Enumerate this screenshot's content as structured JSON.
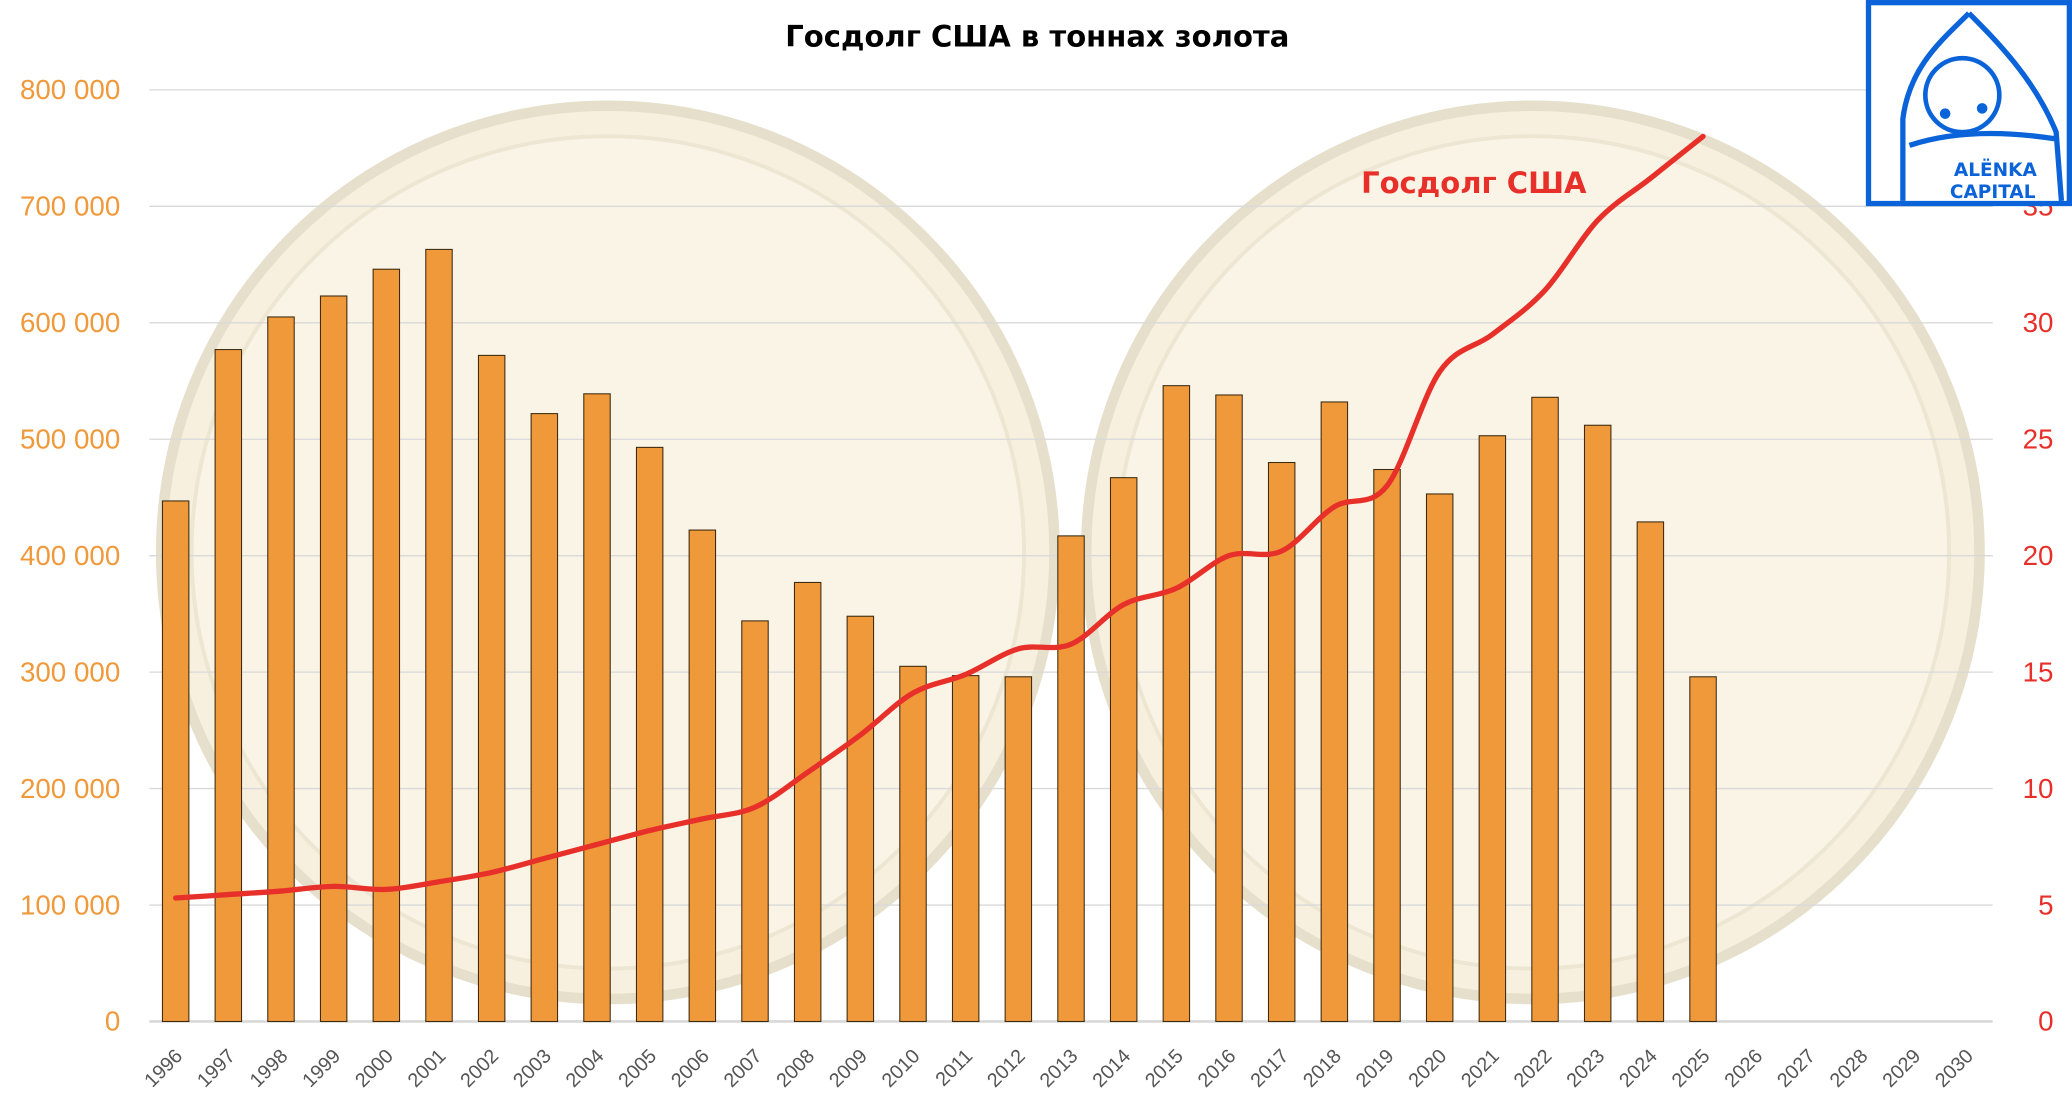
{
  "chart_data": {
    "type": "bar+line",
    "title": "Госдолг США в тоннах золота",
    "categories": [
      "1996",
      "1997",
      "1998",
      "1999",
      "2000",
      "2001",
      "2002",
      "2003",
      "2004",
      "2005",
      "2006",
      "2007",
      "2008",
      "2009",
      "2010",
      "2011",
      "2012",
      "2013",
      "2014",
      "2015",
      "2016",
      "2017",
      "2018",
      "2019",
      "2020",
      "2021",
      "2022",
      "2023",
      "2024",
      "2025",
      "2026",
      "2027",
      "2028",
      "2029",
      "2030"
    ],
    "series": [
      {
        "type": "bar",
        "axis": "left",
        "color": "#f0993a",
        "values": [
          447000,
          577000,
          605000,
          623000,
          646000,
          663000,
          572000,
          522000,
          539000,
          493000,
          422000,
          344000,
          377000,
          348000,
          305000,
          297000,
          296000,
          417000,
          467000,
          546000,
          538000,
          480000,
          532000,
          474000,
          453000,
          503000,
          536000,
          512000,
          429000,
          296000,
          null,
          null,
          null,
          null,
          null
        ]
      },
      {
        "type": "line",
        "axis": "right",
        "name": "Госдолг США",
        "color": "#e8302a",
        "values": [
          5.3,
          5.45,
          5.6,
          5.8,
          5.67,
          6.0,
          6.4,
          7.0,
          7.6,
          8.2,
          8.7,
          9.2,
          10.7,
          12.3,
          14.1,
          14.9,
          16.0,
          16.2,
          17.9,
          18.6,
          20.0,
          20.2,
          22.1,
          23.0,
          27.9,
          29.5,
          31.4,
          34.4,
          36.2,
          38.0,
          null,
          null,
          null,
          null,
          null
        ]
      }
    ],
    "y_left": {
      "range": [
        0,
        800000
      ],
      "ticks": [
        "0",
        "100 000",
        "200 000",
        "300 000",
        "400 000",
        "500 000",
        "600 000",
        "700 000",
        "800 000"
      ],
      "color": "#f0993a"
    },
    "y_right": {
      "range": [
        0,
        40
      ],
      "ticks": [
        "0",
        "5",
        "10",
        "15",
        "20",
        "25",
        "30",
        "35"
      ],
      "color": "#e8302a"
    },
    "grid": true,
    "legend": "inline label near line"
  },
  "logo": {
    "line1": "ALËNKA",
    "line2": "CAPITAL",
    "color": "#0a63d8"
  },
  "background": "two faded gold coin images (American Buffalo)"
}
